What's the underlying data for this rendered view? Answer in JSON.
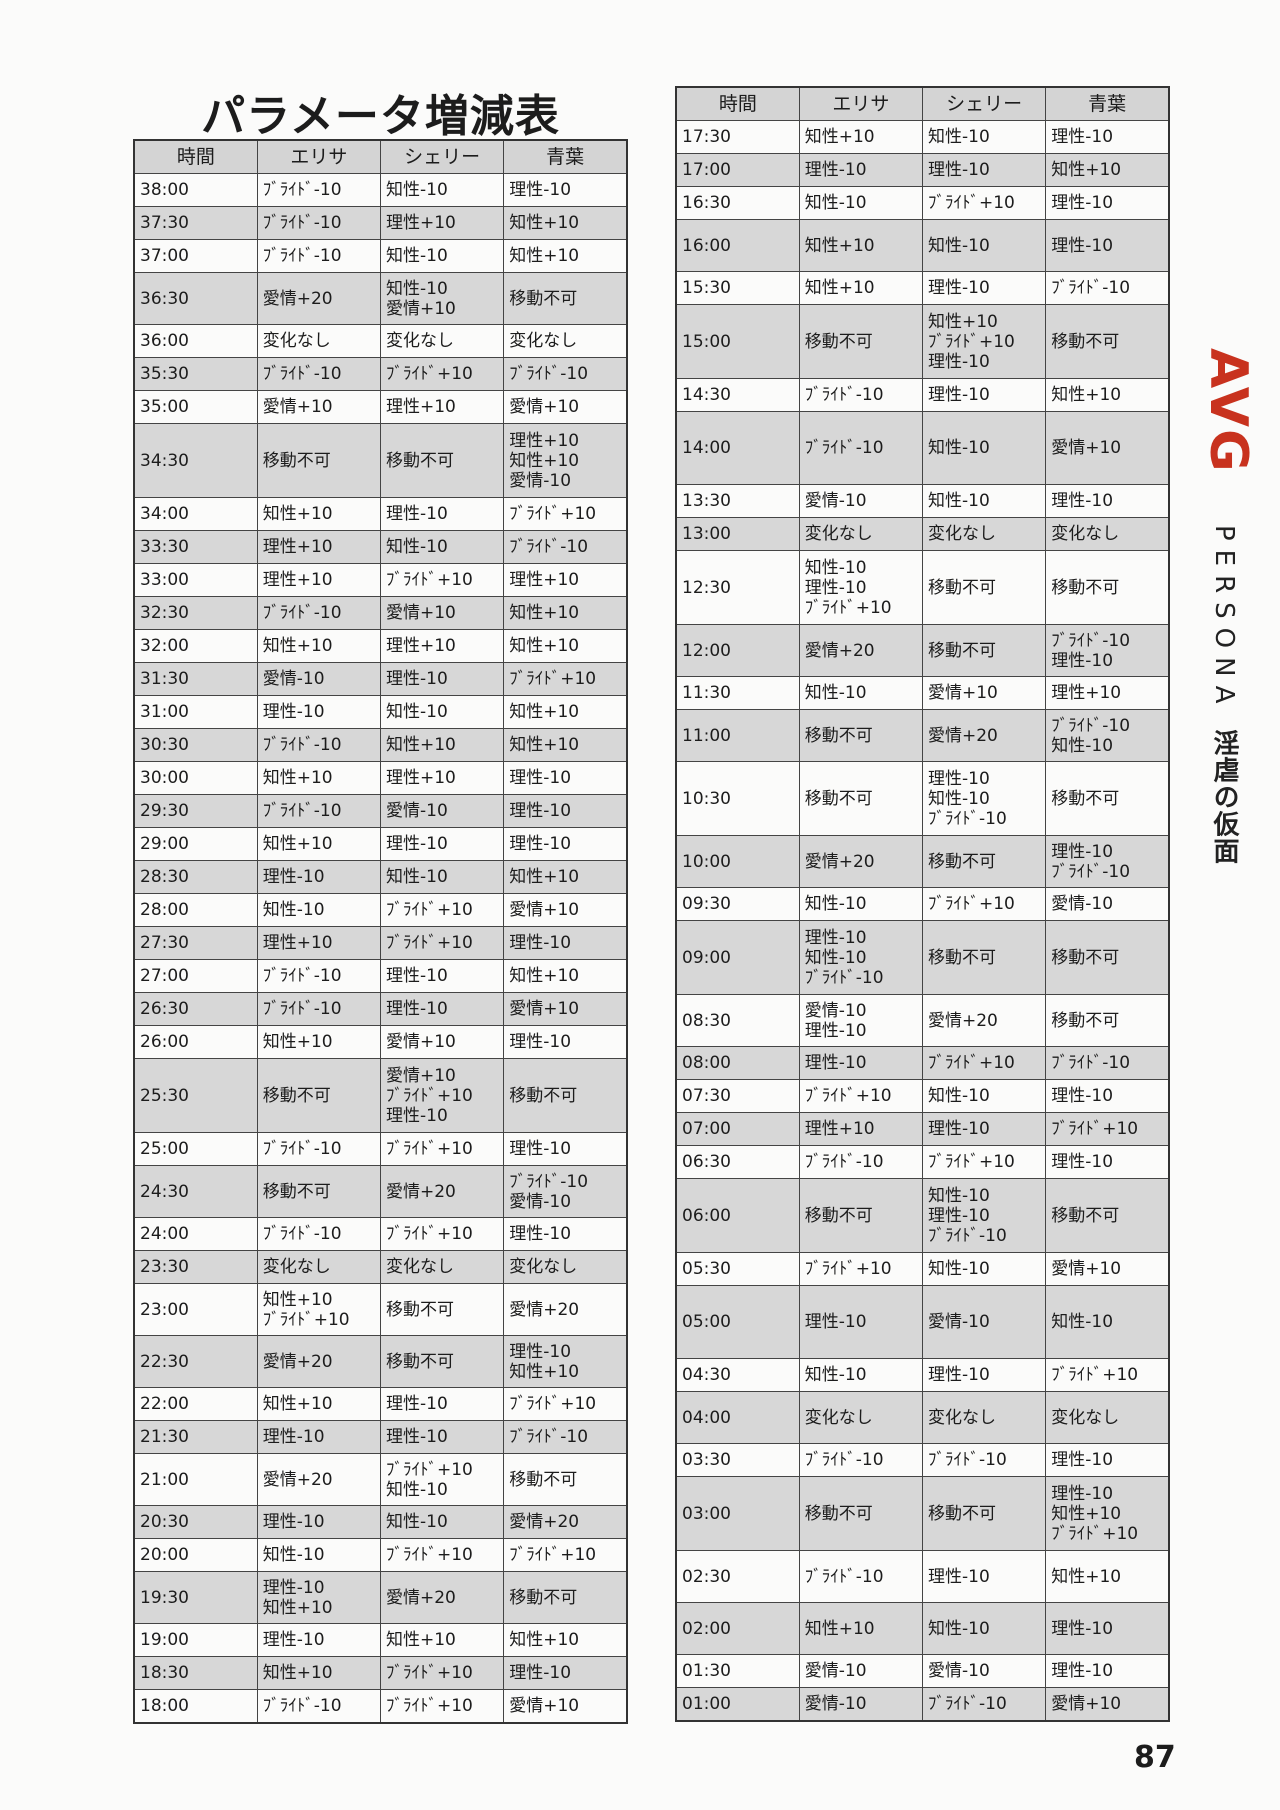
{
  "title": "パラメータ増減表",
  "headers": [
    "時間",
    "エリサ",
    "シェリー",
    "青葉"
  ],
  "left_table": [
    [
      "38:00",
      "ﾌﾞﾗｲﾄﾞ-10",
      "知性-10",
      "理性-10"
    ],
    [
      "37:30",
      "ﾌﾞﾗｲﾄﾞ-10",
      "理性+10",
      "知性+10"
    ],
    [
      "37:00",
      "ﾌﾞﾗｲﾄﾞ-10",
      "知性-10",
      "知性+10"
    ],
    [
      "36:30",
      "愛情+20",
      "知性-10\n愛情+10",
      "移動不可"
    ],
    [
      "36:00",
      "変化なし",
      "変化なし",
      "変化なし"
    ],
    [
      "35:30",
      "ﾌﾞﾗｲﾄﾞ-10",
      "ﾌﾞﾗｲﾄﾞ+10",
      "ﾌﾞﾗｲﾄﾞ-10"
    ],
    [
      "35:00",
      "愛情+10",
      "理性+10",
      "愛情+10"
    ],
    [
      "34:30",
      "移動不可",
      "移動不可",
      "理性+10\n知性+10\n愛情-10"
    ],
    [
      "34:00",
      "知性+10",
      "理性-10",
      "ﾌﾞﾗｲﾄﾞ+10"
    ],
    [
      "33:30",
      "理性+10",
      "知性-10",
      "ﾌﾞﾗｲﾄﾞ-10"
    ],
    [
      "33:00",
      "理性+10",
      "ﾌﾞﾗｲﾄﾞ+10",
      "理性+10"
    ],
    [
      "32:30",
      "ﾌﾞﾗｲﾄﾞ-10",
      "愛情+10",
      "知性+10"
    ],
    [
      "32:00",
      "知性+10",
      "理性+10",
      "知性+10"
    ],
    [
      "31:30",
      "愛情-10",
      "理性-10",
      "ﾌﾞﾗｲﾄﾞ+10"
    ],
    [
      "31:00",
      "理性-10",
      "知性-10",
      "知性+10"
    ],
    [
      "30:30",
      "ﾌﾞﾗｲﾄﾞ-10",
      "知性+10",
      "知性+10"
    ],
    [
      "30:00",
      "知性+10",
      "理性+10",
      "理性-10"
    ],
    [
      "29:30",
      "ﾌﾞﾗｲﾄﾞ-10",
      "愛情-10",
      "理性-10"
    ],
    [
      "29:00",
      "知性+10",
      "理性-10",
      "理性-10"
    ],
    [
      "28:30",
      "理性-10",
      "知性-10",
      "知性+10"
    ],
    [
      "28:00",
      "知性-10",
      "ﾌﾞﾗｲﾄﾞ+10",
      "愛情+10"
    ],
    [
      "27:30",
      "理性+10",
      "ﾌﾞﾗｲﾄﾞ+10",
      "理性-10"
    ],
    [
      "27:00",
      "ﾌﾞﾗｲﾄﾞ-10",
      "理性-10",
      "知性+10"
    ],
    [
      "26:30",
      "ﾌﾞﾗｲﾄﾞ-10",
      "理性-10",
      "愛情+10"
    ],
    [
      "26:00",
      "知性+10",
      "愛情+10",
      "理性-10"
    ],
    [
      "25:30",
      "移動不可",
      "愛情+10\nﾌﾞﾗｲﾄﾞ+10\n理性-10",
      "移動不可"
    ],
    [
      "25:00",
      "ﾌﾞﾗｲﾄﾞ-10",
      "ﾌﾞﾗｲﾄﾞ+10",
      "理性-10"
    ],
    [
      "24:30",
      "移動不可",
      "愛情+20",
      "ﾌﾞﾗｲﾄﾞ-10\n愛情-10"
    ],
    [
      "24:00",
      "ﾌﾞﾗｲﾄﾞ-10",
      "ﾌﾞﾗｲﾄﾞ+10",
      "理性-10"
    ],
    [
      "23:30",
      "変化なし",
      "変化なし",
      "変化なし"
    ],
    [
      "23:00",
      "知性+10\nﾌﾞﾗｲﾄﾞ+10",
      "移動不可",
      "愛情+20"
    ],
    [
      "22:30",
      "愛情+20",
      "移動不可",
      "理性-10\n知性+10"
    ],
    [
      "22:00",
      "知性+10",
      "理性-10",
      "ﾌﾞﾗｲﾄﾞ+10"
    ],
    [
      "21:30",
      "理性-10",
      "理性-10",
      "ﾌﾞﾗｲﾄﾞ-10"
    ],
    [
      "21:00",
      "愛情+20",
      "ﾌﾞﾗｲﾄﾞ+10\n知性-10",
      "移動不可"
    ],
    [
      "20:30",
      "理性-10",
      "知性-10",
      "愛情+20"
    ],
    [
      "20:00",
      "知性-10",
      "ﾌﾞﾗｲﾄﾞ+10",
      "ﾌﾞﾗｲﾄﾞ+10"
    ],
    [
      "19:30",
      "理性-10\n知性+10",
      "愛情+20",
      "移動不可"
    ],
    [
      "19:00",
      "理性-10",
      "知性+10",
      "知性+10"
    ],
    [
      "18:30",
      "知性+10",
      "ﾌﾞﾗｲﾄﾞ+10",
      "理性-10"
    ],
    [
      "18:00",
      "ﾌﾞﾗｲﾄﾞ-10",
      "ﾌﾞﾗｲﾄﾞ+10",
      "愛情+10"
    ]
  ],
  "right_table": [
    [
      "17:30",
      "知性+10",
      "知性-10",
      "理性-10"
    ],
    [
      "17:00",
      "理性-10",
      "理性-10",
      "知性+10"
    ],
    [
      "16:30",
      "知性-10",
      "ﾌﾞﾗｲﾄﾞ+10",
      "理性-10"
    ],
    [
      "16:00",
      "知性+10",
      "知性-10",
      "理性-10"
    ],
    [
      "15:30",
      "知性+10",
      "理性-10",
      "ﾌﾞﾗｲﾄﾞ-10"
    ],
    [
      "15:00",
      "移動不可",
      "知性+10\nﾌﾞﾗｲﾄﾞ+10\n理性-10",
      "移動不可"
    ],
    [
      "14:30",
      "ﾌﾞﾗｲﾄﾞ-10",
      "理性-10",
      "知性+10"
    ],
    [
      "14:00",
      "ﾌﾞﾗｲﾄﾞ-10",
      "知性-10",
      "愛情+10"
    ],
    [
      "13:30",
      "愛情-10",
      "知性-10",
      "理性-10"
    ],
    [
      "13:00",
      "変化なし",
      "変化なし",
      "変化なし"
    ],
    [
      "12:30",
      "知性-10\n理性-10\nﾌﾞﾗｲﾄﾞ+10",
      "移動不可",
      "移動不可"
    ],
    [
      "12:00",
      "愛情+20",
      "移動不可",
      "ﾌﾞﾗｲﾄﾞ-10\n理性-10"
    ],
    [
      "11:30",
      "知性-10",
      "愛情+10",
      "理性+10"
    ],
    [
      "11:00",
      "移動不可",
      "愛情+20",
      "ﾌﾞﾗｲﾄﾞ-10\n知性-10"
    ],
    [
      "10:30",
      "移動不可",
      "理性-10\n知性-10\nﾌﾞﾗｲﾄﾞ-10",
      "移動不可"
    ],
    [
      "10:00",
      "愛情+20",
      "移動不可",
      "理性-10\nﾌﾞﾗｲﾄﾞ-10"
    ],
    [
      "09:30",
      "知性-10",
      "ﾌﾞﾗｲﾄﾞ+10",
      "愛情-10"
    ],
    [
      "09:00",
      "理性-10\n知性-10\nﾌﾞﾗｲﾄﾞ-10",
      "移動不可",
      "移動不可"
    ],
    [
      "08:30",
      "愛情-10\n理性-10",
      "愛情+20",
      "移動不可"
    ],
    [
      "08:00",
      "理性-10",
      "ﾌﾞﾗｲﾄﾞ+10",
      "ﾌﾞﾗｲﾄﾞ-10"
    ],
    [
      "07:30",
      "ﾌﾞﾗｲﾄﾞ+10",
      "知性-10",
      "理性-10"
    ],
    [
      "07:00",
      "理性+10",
      "理性-10",
      "ﾌﾞﾗｲﾄﾞ+10"
    ],
    [
      "06:30",
      "ﾌﾞﾗｲﾄﾞ-10",
      "ﾌﾞﾗｲﾄﾞ+10",
      "理性-10"
    ],
    [
      "06:00",
      "移動不可",
      "知性-10\n理性-10\nﾌﾞﾗｲﾄﾞ-10",
      "移動不可"
    ],
    [
      "05:30",
      "ﾌﾞﾗｲﾄﾞ+10",
      "知性-10",
      "愛情+10"
    ],
    [
      "05:00",
      "理性-10",
      "愛情-10",
      "知性-10"
    ],
    [
      "04:30",
      "知性-10",
      "理性-10",
      "ﾌﾞﾗｲﾄﾞ+10"
    ],
    [
      "04:00",
      "変化なし",
      "変化なし",
      "変化なし"
    ],
    [
      "03:30",
      "ﾌﾞﾗｲﾄﾞ-10",
      "ﾌﾞﾗｲﾄﾞ-10",
      "理性-10"
    ],
    [
      "03:00",
      "移動不可",
      "移動不可",
      "理性-10\n知性+10\nﾌﾞﾗｲﾄﾞ+10"
    ],
    [
      "02:30",
      "ﾌﾞﾗｲﾄﾞ-10",
      "理性-10",
      "知性+10"
    ],
    [
      "02:00",
      "知性+10",
      "知性-10",
      "理性-10"
    ],
    [
      "01:30",
      "愛情-10",
      "愛情-10",
      "理性-10"
    ],
    [
      "01:00",
      "愛情-10",
      "ﾌﾞﾗｲﾄﾞ-10",
      "愛情+10"
    ]
  ],
  "side": {
    "label_avg": "AVG",
    "label_persona": "PERSONA",
    "label_subtitle": "淫虐の仮面",
    "avg_color": "#c8321e"
  },
  "page_number": "87"
}
